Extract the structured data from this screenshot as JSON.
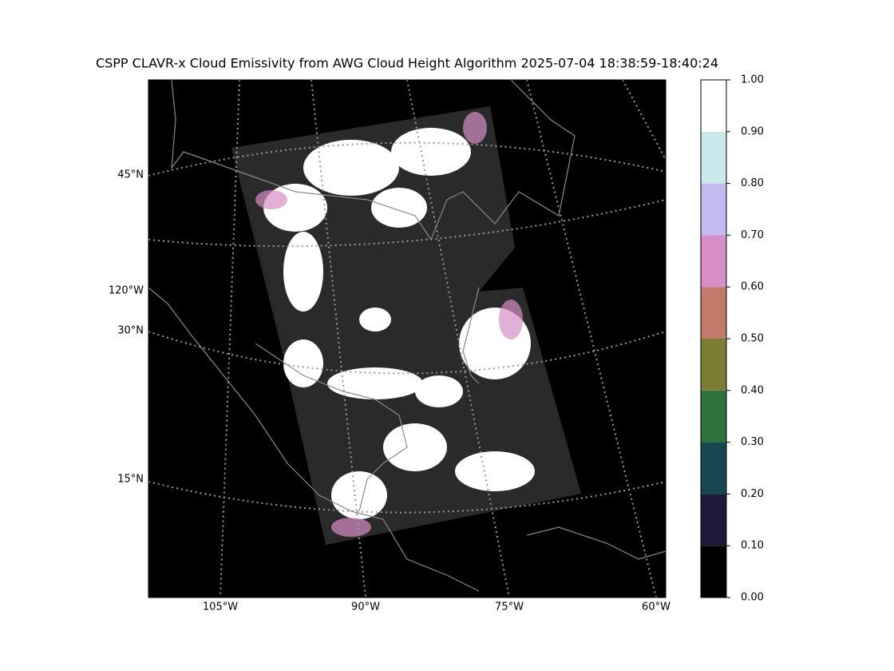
{
  "title": "CSPP CLAVR-x Cloud Emissivity from AWG Cloud Height Algorithm 2025-07-04 18:38:59-18:40:24",
  "map": {
    "lat_labels": [
      "45°N",
      "120°W",
      "30°N",
      "15°N"
    ],
    "lon_labels": [
      "105°W",
      "90°W",
      "75°W",
      "60°W"
    ]
  },
  "colorbar": {
    "lim": [
      0,
      1
    ],
    "ticks": [
      {
        "value": 0,
        "label": "0.00"
      },
      {
        "value": 0.1,
        "label": "0.10"
      },
      {
        "value": 0.2,
        "label": "0.20"
      },
      {
        "value": 0.3,
        "label": "0.30"
      },
      {
        "value": 0.4,
        "label": "0.40"
      },
      {
        "value": 0.5,
        "label": "0.50"
      },
      {
        "value": 0.6,
        "label": "0.60"
      },
      {
        "value": 0.7,
        "label": "0.70"
      },
      {
        "value": 0.8,
        "label": "0.80"
      },
      {
        "value": 0.9,
        "label": "0.90"
      },
      {
        "value": 1,
        "label": "1.00"
      }
    ],
    "colors": [
      "#000000",
      "#1e1a3a",
      "#18464f",
      "#2f733c",
      "#7b7d35",
      "#c27a6b",
      "#d58ec6",
      "#c3bbf0",
      "#cbe8ec",
      "#ffffff"
    ]
  }
}
